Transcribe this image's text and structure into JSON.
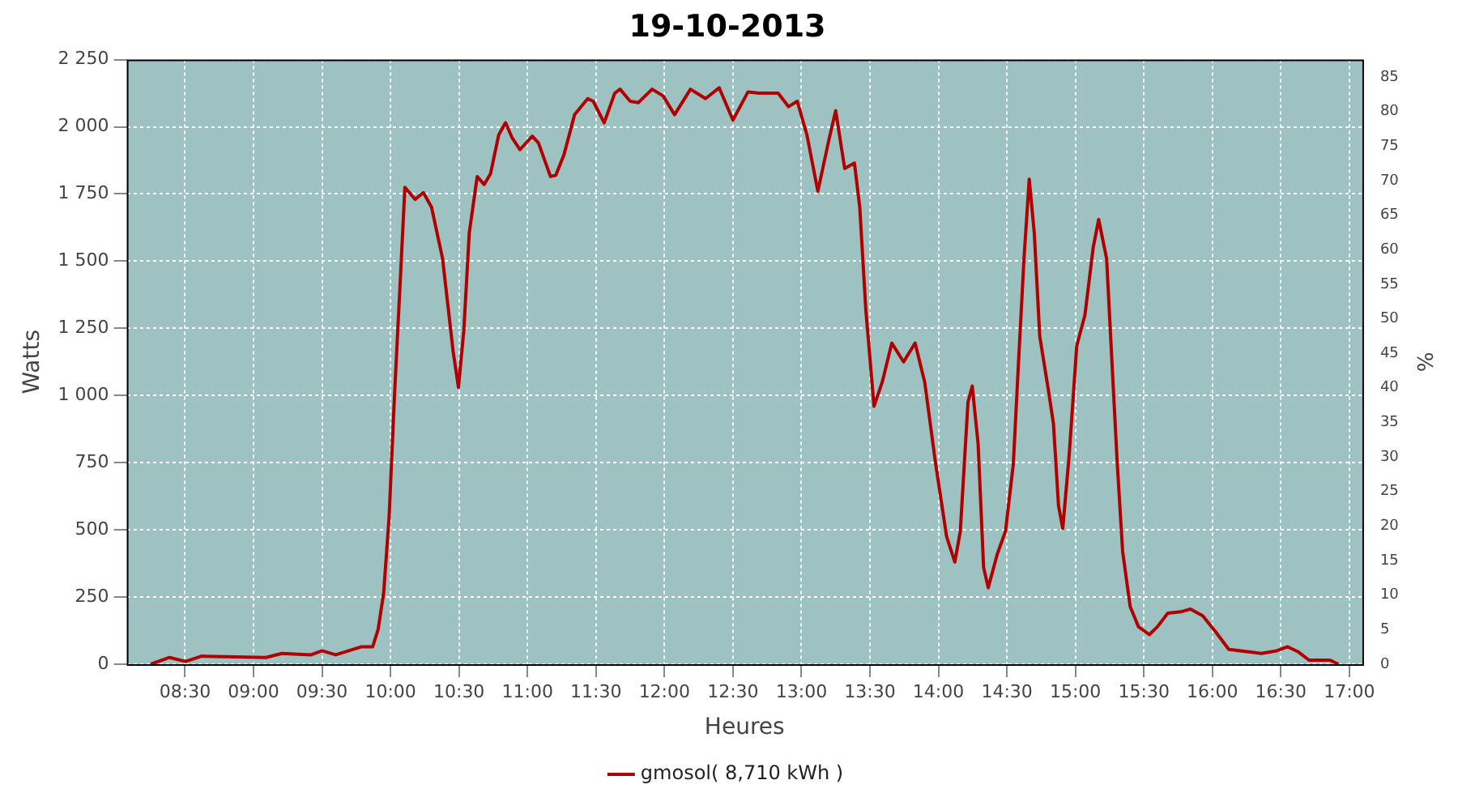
{
  "chart_data": {
    "type": "line",
    "title": "19-10-2013",
    "xlabel": "Heures",
    "ylabel": "Watts",
    "y2label": "%",
    "legend": "bottom",
    "grid": true,
    "marker": "none",
    "line_style": "solid",
    "xlim": [
      8.075,
      17.095
    ],
    "xticks": [
      {
        "value": 8.5,
        "label": "08:30"
      },
      {
        "value": 9,
        "label": "09:00"
      },
      {
        "value": 9.5,
        "label": "09:30"
      },
      {
        "value": 10,
        "label": "10:00"
      },
      {
        "value": 10.5,
        "label": "10:30"
      },
      {
        "value": 11,
        "label": "11:00"
      },
      {
        "value": 11.5,
        "label": "11:30"
      },
      {
        "value": 12,
        "label": "12:00"
      },
      {
        "value": 12.5,
        "label": "12:30"
      },
      {
        "value": 13,
        "label": "13:00"
      },
      {
        "value": 13.5,
        "label": "13:30"
      },
      {
        "value": 14,
        "label": "14:00"
      },
      {
        "value": 14.5,
        "label": "14:30"
      },
      {
        "value": 15,
        "label": "15:00"
      },
      {
        "value": 15.5,
        "label": "15:30"
      },
      {
        "value": 16,
        "label": "16:00"
      },
      {
        "value": 16.5,
        "label": "16:30"
      },
      {
        "value": 17,
        "label": "17:00"
      }
    ],
    "ylim": [
      0,
      2250
    ],
    "yticks": [
      0,
      250,
      500,
      750,
      {
        "value": 1000,
        "label": "1 000"
      },
      {
        "value": 1250,
        "label": "1 250"
      },
      {
        "value": 1500,
        "label": "1 500"
      },
      {
        "value": 1750,
        "label": "1 750"
      },
      {
        "value": 2000,
        "label": "2 000"
      },
      {
        "value": 2250,
        "label": "2 250"
      }
    ],
    "y2lim": [
      0,
      87.5
    ],
    "y2ticks": [
      0,
      5,
      10,
      15,
      20,
      25,
      30,
      35,
      40,
      45,
      50,
      55,
      60,
      65,
      70,
      75,
      80,
      85
    ],
    "series": [
      {
        "name": "gmosol( 8,710 kWh )",
        "color": "#b00000",
        "x": [
          8.25,
          8.387,
          8.504,
          8.62,
          9.09,
          9.207,
          9.42,
          9.5,
          9.6,
          9.79,
          9.87,
          9.91,
          9.95,
          9.99,
          10.03,
          10.07,
          10.105,
          10.18,
          10.24,
          10.3,
          10.38,
          10.457,
          10.496,
          10.535,
          10.575,
          10.633,
          10.684,
          10.73,
          10.79,
          10.84,
          10.887,
          10.945,
          11.035,
          11.08,
          11.14,
          11.168,
          11.207,
          11.266,
          11.344,
          11.44,
          11.48,
          11.56,
          11.637,
          11.676,
          11.75,
          11.81,
          11.91,
          11.99,
          12.074,
          12.19,
          12.3,
          12.4,
          12.5,
          12.61,
          12.69,
          12.83,
          12.906,
          12.97,
          13.04,
          13.12,
          13.2,
          13.25,
          13.316,
          13.387,
          13.426,
          13.47,
          13.53,
          13.59,
          13.66,
          13.746,
          13.83,
          13.9,
          13.98,
          14.06,
          14.12,
          14.16,
          14.216,
          14.247,
          14.29,
          14.33,
          14.364,
          14.43,
          14.49,
          14.547,
          14.585,
          14.625,
          14.663,
          14.7,
          14.74,
          14.8,
          14.84,
          14.877,
          14.908,
          14.955,
          15.01,
          15.07,
          15.13,
          15.17,
          15.228,
          15.267,
          15.306,
          15.345,
          15.4,
          15.46,
          15.54,
          15.6,
          15.675,
          15.77,
          15.84,
          15.93,
          16.025,
          16.12,
          16.28,
          16.356,
          16.47,
          16.55,
          16.63,
          16.706,
          16.86,
          16.92
        ],
        "values": [
          0,
          25,
          10,
          30,
          25,
          40,
          35,
          50,
          35,
          65,
          65,
          130,
          265,
          550,
          1010,
          1415,
          1775,
          1730,
          1755,
          1700,
          1510,
          1165,
          1030,
          1240,
          1605,
          1815,
          1785,
          1825,
          1970,
          2015,
          1960,
          1915,
          1965,
          1940,
          1855,
          1815,
          1820,
          1895,
          2045,
          2105,
          2095,
          2015,
          2125,
          2140,
          2095,
          2090,
          2140,
          2115,
          2045,
          2140,
          2105,
          2145,
          2025,
          2130,
          2125,
          2125,
          2075,
          2095,
          1970,
          1760,
          1950,
          2060,
          1845,
          1865,
          1700,
          1320,
          960,
          1050,
          1195,
          1125,
          1195,
          1050,
          745,
          475,
          380,
          495,
          975,
          1035,
          820,
          360,
          285,
          410,
          495,
          745,
          1125,
          1510,
          1805,
          1605,
          1220,
          1030,
          895,
          590,
          505,
          780,
          1185,
          1300,
          1550,
          1655,
          1510,
          1125,
          745,
          420,
          215,
          140,
          110,
          140,
          190,
          195,
          205,
          180,
          120,
          55,
          45,
          40,
          50,
          65,
          45,
          15,
          15,
          0
        ]
      }
    ]
  }
}
